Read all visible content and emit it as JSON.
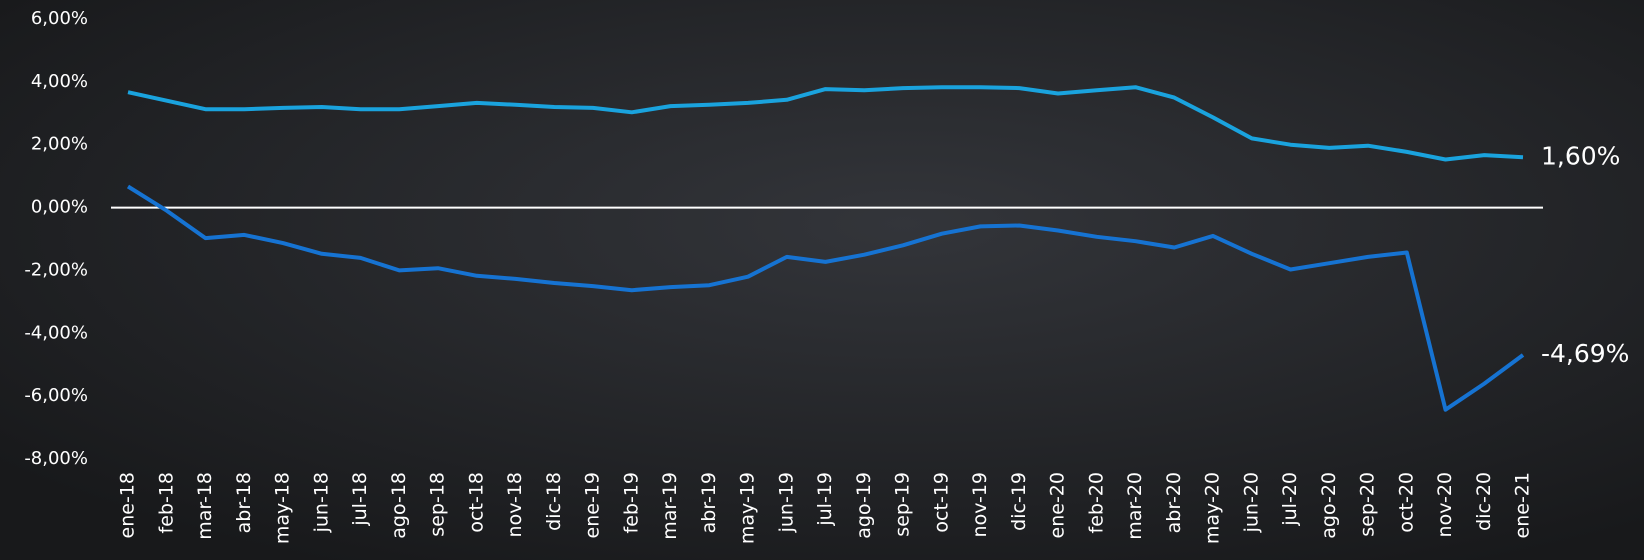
{
  "chart_data": {
    "type": "line",
    "categories": [
      "ene-18",
      "feb-18",
      "mar-18",
      "abr-18",
      "may-18",
      "jun-18",
      "jul-18",
      "ago-18",
      "sep-18",
      "oct-18",
      "nov-18",
      "dic-18",
      "ene-19",
      "feb-19",
      "mar-19",
      "abr-19",
      "may-19",
      "jun-19",
      "jul-19",
      "ago-19",
      "sep-19",
      "oct-19",
      "nov-19",
      "dic-19",
      "ene-20",
      "feb-20",
      "mar-20",
      "abr-20",
      "may-20",
      "jun-20",
      "jul-20",
      "ago-20",
      "sep-20",
      "oct-20",
      "nov-20",
      "dic-20",
      "ene-21"
    ],
    "series": [
      {
        "color": "#1aa3de",
        "values": [
          3.67,
          3.4,
          3.13,
          3.13,
          3.17,
          3.2,
          3.13,
          3.13,
          3.23,
          3.33,
          3.27,
          3.2,
          3.17,
          3.03,
          3.23,
          3.27,
          3.33,
          3.43,
          3.77,
          3.73,
          3.8,
          3.83,
          3.83,
          3.8,
          3.63,
          3.73,
          3.83,
          3.5,
          2.87,
          2.2,
          2.0,
          1.9,
          1.97,
          1.77,
          1.53,
          1.67,
          1.6
        ],
        "value_labels": [
          null,
          null,
          null,
          null,
          null,
          null,
          null,
          null,
          null,
          null,
          null,
          null,
          null,
          null,
          null,
          null,
          null,
          null,
          null,
          null,
          null,
          null,
          null,
          null,
          null,
          null,
          null,
          null,
          null,
          null,
          null,
          null,
          null,
          null,
          null,
          null,
          "1,60%"
        ]
      },
      {
        "color": "#1673d2",
        "values": [
          0.67,
          -0.1,
          -0.97,
          -0.87,
          -1.13,
          -1.47,
          -1.6,
          -2.0,
          -1.93,
          -2.17,
          -2.27,
          -2.4,
          -2.5,
          -2.63,
          -2.53,
          -2.47,
          -2.2,
          -1.57,
          -1.73,
          -1.5,
          -1.2,
          -0.83,
          -0.6,
          -0.57,
          -0.73,
          -0.93,
          -1.07,
          -1.27,
          -0.9,
          -1.47,
          -1.97,
          -1.77,
          -1.57,
          -1.43,
          -6.43,
          -5.6,
          -4.69
        ],
        "value_labels": [
          null,
          null,
          null,
          null,
          null,
          null,
          null,
          null,
          null,
          null,
          null,
          null,
          null,
          null,
          null,
          null,
          null,
          null,
          null,
          null,
          null,
          null,
          null,
          null,
          null,
          null,
          null,
          null,
          null,
          null,
          null,
          null,
          null,
          null,
          null,
          null,
          "-4,69%"
        ]
      }
    ],
    "ylim": [
      -8,
      6
    ],
    "yticks": [
      {
        "value": -8,
        "label": "-8,00%"
      },
      {
        "value": -6,
        "label": "-6,00%"
      },
      {
        "value": -4,
        "label": "-4,00%"
      },
      {
        "value": -2,
        "label": "-2,00%"
      },
      {
        "value": 0,
        "label": "0,00%"
      },
      {
        "value": 2,
        "label": "2,00%"
      },
      {
        "value": 4,
        "label": "4,00%"
      },
      {
        "value": 6,
        "label": "6,00%"
      }
    ],
    "grid": false
  }
}
